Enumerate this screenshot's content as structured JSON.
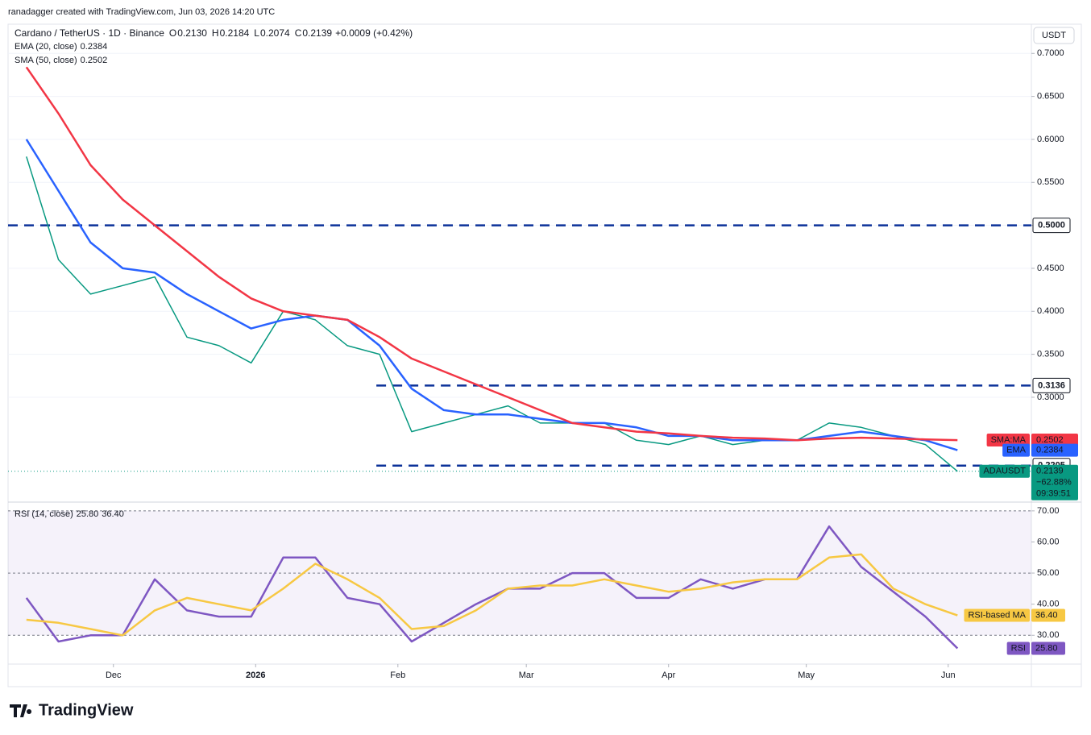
{
  "header": {
    "attribution": "ranadagger created with TradingView.com, Jun 03, 2026 14:20 UTC",
    "symbol": "Cardano / TetherUS · 1D · Binance",
    "ohlc": [
      {
        "key": "O",
        "text": "0.2130"
      },
      {
        "key": "H",
        "text": "0.2184"
      },
      {
        "key": "L",
        "text": "0.2074"
      },
      {
        "key": "C",
        "text": "0.2139"
      }
    ],
    "change": "+0.0009 (+0.42%)",
    "currency": "USDT"
  },
  "chart_data": [
    {
      "type": "line",
      "xlim": [
        -0.571,
        31.3
      ],
      "ylim": [
        0.179,
        0.734
      ],
      "yticks": [
        {
          "value": 0.7,
          "label": "0.7000"
        },
        {
          "value": 0.65,
          "label": "0.6500"
        },
        {
          "value": 0.6,
          "label": "0.6000"
        },
        {
          "value": 0.55,
          "label": "0.5500"
        },
        {
          "value": 0.5,
          "label": "0.5000"
        },
        {
          "value": 0.45,
          "label": "0.4500"
        },
        {
          "value": 0.4,
          "label": "0.4000"
        },
        {
          "value": 0.35,
          "label": "0.3500"
        },
        {
          "value": 0.3,
          "label": "0.3000"
        }
      ],
      "grid": true,
      "series": [
        {
          "name": "ADAUSDT",
          "color": "#089981",
          "values": [
            0.58,
            0.46,
            0.42,
            0.43,
            0.44,
            0.37,
            0.36,
            0.34,
            0.4,
            0.39,
            0.36,
            0.35,
            0.26,
            0.27,
            0.28,
            0.29,
            0.27,
            0.27,
            0.27,
            0.25,
            0.245,
            0.255,
            0.245,
            0.25,
            0.25,
            0.27,
            0.265,
            0.255,
            0.245,
            0.2139
          ]
        },
        {
          "name": "EMA (20, close)",
          "last_label": "0.2384",
          "color": "#2962ff",
          "values": [
            0.6,
            0.54,
            0.48,
            0.45,
            0.445,
            0.42,
            0.4,
            0.38,
            0.39,
            0.395,
            0.39,
            0.36,
            0.31,
            0.285,
            0.28,
            0.28,
            0.275,
            0.27,
            0.27,
            0.265,
            0.255,
            0.255,
            0.25,
            0.25,
            0.25,
            0.255,
            0.26,
            0.255,
            0.25,
            0.2384
          ]
        },
        {
          "name": "SMA (50, close)",
          "last_label": "0.2502",
          "color": "#f23645",
          "values": [
            0.684,
            0.63,
            0.57,
            0.53,
            0.5,
            0.47,
            0.44,
            0.415,
            0.4,
            0.395,
            0.39,
            0.37,
            0.345,
            0.33,
            0.315,
            0.3,
            0.285,
            0.27,
            0.265,
            0.26,
            0.258,
            0.255,
            0.253,
            0.252,
            0.25,
            0.252,
            0.253,
            0.252,
            0.251,
            0.2502
          ]
        }
      ],
      "levels": [
        {
          "value": 0.5,
          "label": "0.5000",
          "from": -0.571
        },
        {
          "value": 0.3136,
          "label": "0.3136",
          "from": 10.9
        },
        {
          "value": 0.2205,
          "label": "0.2205",
          "from": 10.9
        }
      ],
      "level_color": "#0c3299",
      "badges": [
        {
          "tag": "SMA:MA",
          "value": 0.2502,
          "label": "0.2502",
          "color": "#f23645"
        },
        {
          "tag": "EMA",
          "value": 0.2384,
          "label": "0.2384",
          "color": "#2962ff"
        },
        {
          "tag": "ADAUSDT",
          "value": 0.2139,
          "label": "0.2139",
          "lines": [
            "−62.88%",
            "09:39:51"
          ],
          "color": "#089981"
        }
      ]
    },
    {
      "type": "line",
      "title": "RSI (14, close)",
      "xlim": [
        -0.571,
        31.3
      ],
      "ylim": [
        21,
        72.3
      ],
      "yticks": [
        {
          "value": 70,
          "label": "70.00"
        },
        {
          "value": 60,
          "label": "60.00"
        },
        {
          "value": 50,
          "label": "50.00"
        },
        {
          "value": 40,
          "label": "40.00"
        },
        {
          "value": 30,
          "label": "30.00"
        }
      ],
      "levels": [
        30,
        50,
        70
      ],
      "xticks": [
        {
          "value": 2.71,
          "label": "Dec"
        },
        {
          "value": 7.14,
          "label": "2026"
        },
        {
          "value": 11.57,
          "label": "Feb"
        },
        {
          "value": 15.57,
          "label": "Mar"
        },
        {
          "value": 20,
          "label": "Apr"
        },
        {
          "value": 24.29,
          "label": "May"
        },
        {
          "value": 28.71,
          "label": "Jun"
        }
      ],
      "series": [
        {
          "name": "RSI",
          "legend_label": "25.80",
          "color": "#7e57c2",
          "values": [
            42,
            28,
            30,
            30,
            48,
            38,
            36,
            36,
            55,
            55,
            42,
            40,
            28,
            34,
            40,
            45,
            45,
            50,
            50,
            42,
            42,
            48,
            45,
            48,
            48,
            65,
            52,
            44,
            36,
            25.8
          ]
        },
        {
          "name": "RSI-based MA",
          "legend_label": "36.40",
          "color": "#f7c843",
          "values": [
            35,
            34,
            32,
            30,
            38,
            42,
            40,
            38,
            45,
            53,
            48,
            42,
            32,
            33,
            38,
            45,
            46,
            46,
            48,
            46,
            44,
            45,
            47,
            48,
            48,
            55,
            56,
            45,
            40,
            36.4
          ]
        }
      ]
    }
  ],
  "footer": {
    "brand": "TradingView"
  }
}
